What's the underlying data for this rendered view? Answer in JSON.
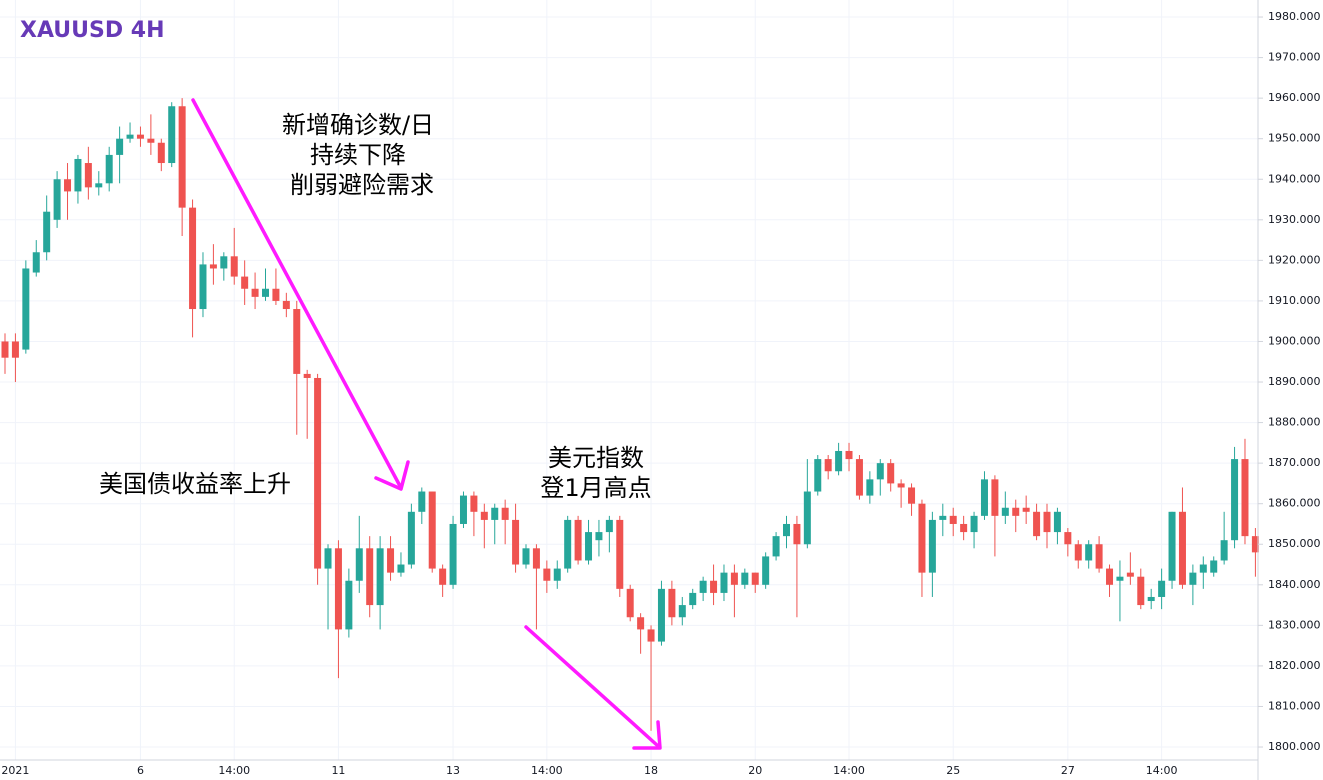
{
  "chart_data": {
    "type": "candlestick",
    "title": "XAUUSD 4H",
    "up_color": "#26a69a",
    "down_color": "#ef5350",
    "grid": true,
    "ylim": [
      1796.8,
      1984.2
    ],
    "yticks": [
      {
        "value": 1800,
        "label": "1800.000"
      },
      {
        "value": 1810,
        "label": "1810.000"
      },
      {
        "value": 1820,
        "label": "1820.000"
      },
      {
        "value": 1830,
        "label": "1830.000"
      },
      {
        "value": 1840,
        "label": "1840.000"
      },
      {
        "value": 1850,
        "label": "1850.000"
      },
      {
        "value": 1860,
        "label": "1860.000"
      },
      {
        "value": 1870,
        "label": "1870.000"
      },
      {
        "value": 1880,
        "label": "1880.000"
      },
      {
        "value": 1890,
        "label": "1890.000"
      },
      {
        "value": 1900,
        "label": "1900.000"
      },
      {
        "value": 1910,
        "label": "1910.000"
      },
      {
        "value": 1920,
        "label": "1920.000"
      },
      {
        "value": 1930,
        "label": "1930.000"
      },
      {
        "value": 1940,
        "label": "1940.000"
      },
      {
        "value": 1950,
        "label": "1950.000"
      },
      {
        "value": 1960,
        "label": "1960.000"
      },
      {
        "value": 1970,
        "label": "1970.000"
      },
      {
        "value": 1980,
        "label": "1980.000"
      }
    ],
    "categories": [
      null,
      "2021",
      null,
      null,
      null,
      null,
      null,
      null,
      null,
      null,
      null,
      null,
      null,
      "6",
      null,
      null,
      null,
      null,
      null,
      null,
      null,
      null,
      "14:00",
      null,
      null,
      null,
      null,
      null,
      null,
      null,
      null,
      null,
      "11",
      null,
      null,
      null,
      null,
      null,
      null,
      null,
      null,
      null,
      null,
      "13",
      null,
      null,
      null,
      null,
      null,
      null,
      null,
      null,
      "14:00",
      null,
      null,
      null,
      null,
      null,
      null,
      null,
      null,
      null,
      "18",
      null,
      null,
      null,
      null,
      null,
      null,
      null,
      null,
      null,
      "20",
      null,
      null,
      null,
      null,
      null,
      null,
      null,
      null,
      "14:00",
      null,
      null,
      null,
      null,
      null,
      null,
      null,
      null,
      null,
      "25",
      null,
      null,
      null,
      null,
      null,
      null,
      null,
      null,
      null,
      null,
      "27",
      null,
      null,
      null,
      null,
      null,
      null,
      null,
      null,
      "14:00",
      null,
      null,
      null,
      null,
      null,
      null,
      null,
      null,
      null
    ],
    "open": [
      1900,
      1900,
      1898,
      1917,
      1922,
      1930,
      1940,
      1937,
      1944,
      1938,
      1939,
      1946,
      1950,
      1951,
      1950,
      1949,
      1944,
      1958,
      1933,
      1908,
      1919,
      1918,
      1921,
      1916,
      1913,
      1911,
      1913,
      1910,
      1908,
      1892,
      1891,
      1844,
      1849,
      1829,
      1841,
      1849,
      1835,
      1849,
      1843,
      1845,
      1858,
      1863,
      1844,
      1840,
      1855,
      1862,
      1858,
      1856,
      1859,
      1856,
      1845,
      1849,
      1844,
      1841,
      1844,
      1856,
      1846,
      1851,
      1853,
      1856,
      1839,
      1832,
      1829,
      1826,
      1839,
      1832,
      1835,
      1838,
      1841,
      1838,
      1843,
      1840,
      1843,
      1840,
      1847,
      1852,
      1855,
      1850,
      1863,
      1871,
      1868,
      1873,
      1871,
      1862,
      1866,
      1870,
      1865,
      1864,
      1860,
      1843,
      1856,
      1857,
      1855,
      1853,
      1857,
      1866,
      1857,
      1859,
      1859,
      1858,
      1858,
      1853,
      1853,
      1850,
      1846,
      1850,
      1844,
      1841,
      1843,
      1842,
      1836,
      1837,
      1841,
      1858,
      1840,
      1843,
      1843,
      1846,
      1851,
      1871,
      1852
    ],
    "high": [
      1902,
      1902,
      1920,
      1925,
      1936,
      1942,
      1944,
      1946,
      1948,
      1942,
      1948,
      1953,
      1954,
      1953,
      1956,
      1950,
      1959,
      1960,
      1935,
      1922,
      1924,
      1922,
      1928,
      1920,
      1917,
      1918,
      1918,
      1912,
      1910,
      1893,
      1892,
      1850,
      1851,
      1844,
      1857,
      1852,
      1852,
      1852,
      1848,
      1860,
      1864,
      1863,
      1845,
      1857,
      1863,
      1863,
      1860,
      1860,
      1861,
      1860,
      1850,
      1850,
      1846,
      1846,
      1857,
      1857,
      1856,
      1856,
      1857,
      1857,
      1840,
      1833,
      1830,
      1841,
      1841,
      1837,
      1839,
      1842,
      1845,
      1845,
      1845,
      1844,
      1843,
      1848,
      1853,
      1857,
      1857,
      1871,
      1872,
      1872,
      1875,
      1875,
      1872,
      1868,
      1871,
      1871,
      1866,
      1865,
      1861,
      1858,
      1860,
      1859,
      1857,
      1858,
      1868,
      1867,
      1863,
      1861,
      1862,
      1860,
      1860,
      1859,
      1854,
      1851,
      1851,
      1852,
      1845,
      1846,
      1848,
      1844,
      1839,
      1844,
      1858,
      1864,
      1845,
      1847,
      1847,
      1858,
      1874,
      1876,
      1854
    ],
    "low": [
      1892,
      1890,
      1897,
      1916,
      1920,
      1928,
      1930,
      1934,
      1935,
      1936,
      1937,
      1939,
      1949,
      1948,
      1946,
      1942,
      1943,
      1926,
      1901,
      1906,
      1914,
      1915,
      1914,
      1909,
      1908,
      1910,
      1909,
      1906,
      1877,
      1876,
      1840,
      1829,
      1817,
      1827,
      1838,
      1832,
      1829,
      1841,
      1842,
      1844,
      1855,
      1843,
      1837,
      1839,
      1854,
      1852,
      1849,
      1850,
      1850,
      1843,
      1844,
      1829,
      1838,
      1839,
      1843,
      1845,
      1845,
      1847,
      1848,
      1837,
      1831,
      1823,
      1804,
      1825,
      1830,
      1830,
      1834,
      1836,
      1835,
      1836,
      1832,
      1839,
      1838,
      1839,
      1846,
      1849,
      1832,
      1849,
      1862,
      1866,
      1867,
      1868,
      1861,
      1860,
      1862,
      1863,
      1859,
      1857,
      1837,
      1837,
      1852,
      1852,
      1851,
      1849,
      1856,
      1847,
      1855,
      1853,
      1855,
      1851,
      1849,
      1850,
      1847,
      1844,
      1844,
      1843,
      1837,
      1831,
      1840,
      1834,
      1834,
      1834,
      1839,
      1839,
      1835,
      1839,
      1842,
      1845,
      1849,
      1850,
      1842
    ],
    "close": [
      1896,
      1896,
      1918,
      1922,
      1932,
      1940,
      1937,
      1945,
      1938,
      1939,
      1946,
      1950,
      1951,
      1950,
      1949,
      1944,
      1958,
      1933,
      1908,
      1919,
      1918,
      1921,
      1916,
      1913,
      1911,
      1913,
      1910,
      1908,
      1892,
      1891,
      1844,
      1849,
      1829,
      1841,
      1849,
      1835,
      1849,
      1843,
      1845,
      1858,
      1863,
      1844,
      1840,
      1855,
      1862,
      1858,
      1856,
      1859,
      1856,
      1845,
      1849,
      1844,
      1841,
      1844,
      1856,
      1846,
      1853,
      1853,
      1856,
      1839,
      1832,
      1829,
      1826,
      1839,
      1832,
      1835,
      1838,
      1841,
      1838,
      1843,
      1840,
      1843,
      1840,
      1847,
      1852,
      1855,
      1850,
      1863,
      1871,
      1868,
      1873,
      1871,
      1862,
      1866,
      1870,
      1865,
      1864,
      1860,
      1843,
      1856,
      1857,
      1855,
      1853,
      1857,
      1866,
      1857,
      1859,
      1857,
      1858,
      1852,
      1853,
      1858,
      1850,
      1846,
      1850,
      1844,
      1840,
      1842,
      1842,
      1835,
      1837,
      1841,
      1858,
      1840,
      1843,
      1845,
      1846,
      1851,
      1871,
      1852,
      1848
    ],
    "annotations": [
      {
        "lines": [
          "新增确诊数/日",
          "持续下降",
          "削弱避险需求"
        ]
      },
      {
        "lines": [
          "美国债收益率上升"
        ]
      },
      {
        "lines": [
          "美元指数",
          "登1月高点"
        ]
      }
    ]
  }
}
